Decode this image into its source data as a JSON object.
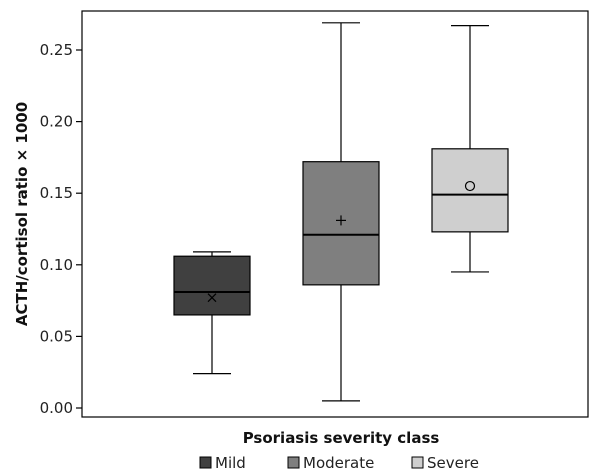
{
  "chart_data": {
    "type": "boxplot",
    "xlabel": "Psoriasis severity class",
    "ylabel": "ACTH/cortisol ratio × 1000",
    "ylim": [
      0.0,
      0.275
    ],
    "yticks": [
      "0.00",
      "0.05",
      "0.10",
      "0.15",
      "0.20",
      "0.25"
    ],
    "ytick_values": [
      0.0,
      0.05,
      0.1,
      0.15,
      0.2,
      0.25
    ],
    "legend_position": "bottom",
    "series": [
      {
        "name": "Mild",
        "color": "#404040",
        "mean_marker": "x",
        "min": 0.024,
        "q1": 0.065,
        "median": 0.081,
        "q3": 0.106,
        "max": 0.109,
        "mean": 0.077
      },
      {
        "name": "Moderate",
        "color": "#7f7f7f",
        "mean_marker": "+",
        "min": 0.005,
        "q1": 0.086,
        "median": 0.121,
        "q3": 0.172,
        "max": 0.269,
        "mean": 0.131
      },
      {
        "name": "Severe",
        "color": "#cfcfcf",
        "mean_marker": "o",
        "min": 0.095,
        "q1": 0.123,
        "median": 0.149,
        "q3": 0.181,
        "max": 0.267,
        "mean": 0.155
      }
    ]
  }
}
